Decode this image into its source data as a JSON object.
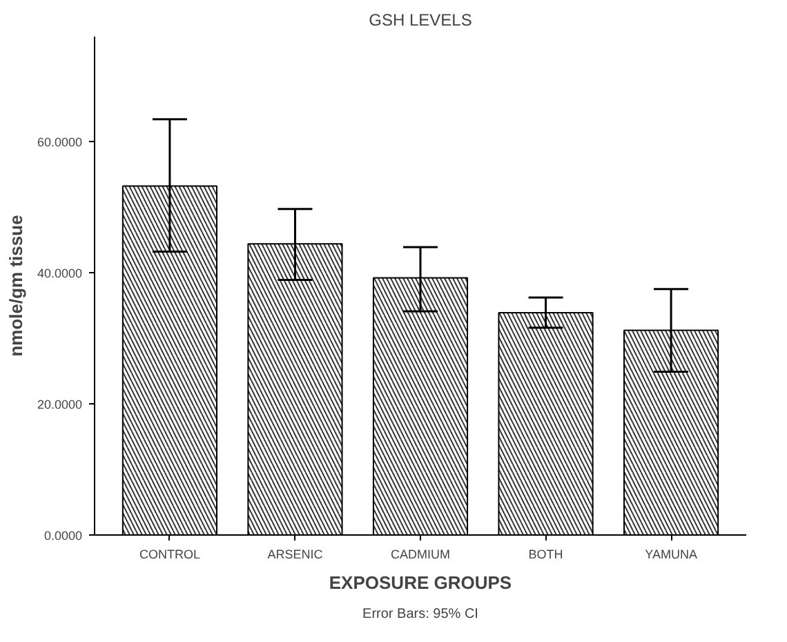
{
  "chart_data": {
    "type": "bar",
    "title": "GSH LEVELS",
    "xlabel": "EXPOSURE GROUPS",
    "ylabel": "nmole/gm tissue",
    "categories": [
      "CONTROL",
      "ARSENIC",
      "CADMIUM",
      "BOTH",
      "YAMUNA"
    ],
    "values": [
      53.2,
      44.4,
      39.2,
      33.9,
      31.2
    ],
    "errors": [
      [
        43.2,
        63.4
      ],
      [
        38.9,
        49.7
      ],
      [
        34.1,
        43.9
      ],
      [
        31.6,
        36.2
      ],
      [
        24.9,
        37.5
      ]
    ],
    "color": "#000000",
    "ylim": [
      0,
      76
    ],
    "yticks": [
      {
        "value": 0,
        "label": "0.0000"
      },
      {
        "value": 20,
        "label": "20.0000"
      },
      {
        "value": 40,
        "label": "40.0000"
      },
      {
        "value": 60,
        "label": "60.0000"
      }
    ],
    "grid": false,
    "annotations": [
      "Error Bars: 95% CI"
    ]
  }
}
